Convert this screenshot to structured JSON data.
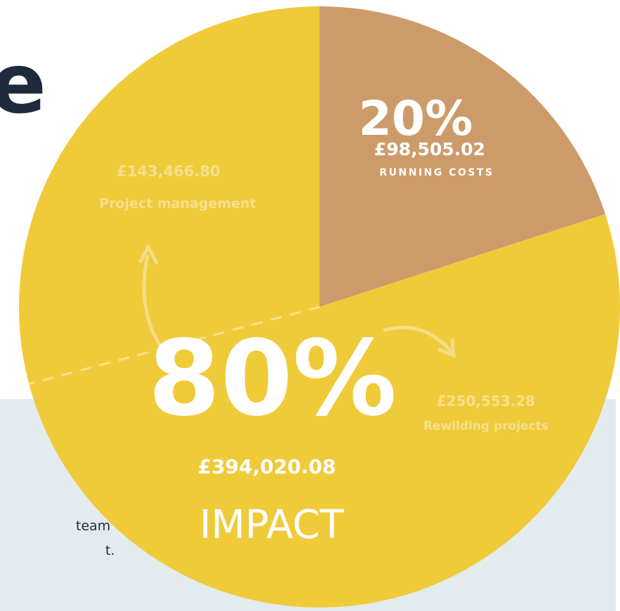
{
  "heading_fragment": "e",
  "body_fragments": [
    "team",
    "t."
  ],
  "chart_data": {
    "type": "pie",
    "categories": [
      "RUNNING COSTS",
      "IMPACT"
    ],
    "values": [
      20,
      80
    ],
    "value_labels": [
      "20%",
      "80%"
    ],
    "amounts": [
      98505.02,
      394020.08
    ],
    "amount_labels": [
      "£98,505.02",
      "£394,020.08"
    ],
    "colors": [
      "#cd9b6a",
      "#efcb3a"
    ],
    "breakdown": [
      {
        "name": "Project management",
        "amount": 143466.8,
        "amount_label": "£143,466.80"
      },
      {
        "name": "Rewilding projects",
        "amount": 250553.28,
        "amount_label": "£250,553.28"
      }
    ]
  }
}
